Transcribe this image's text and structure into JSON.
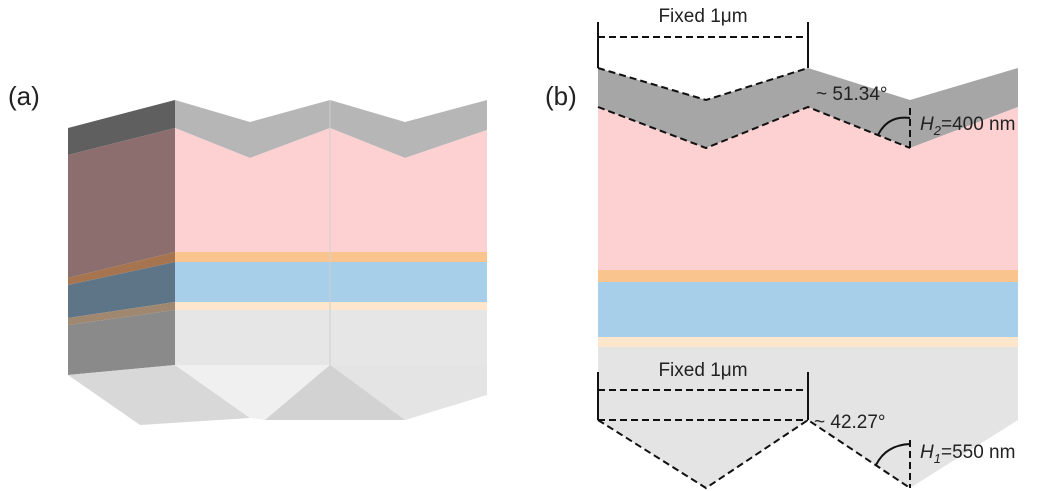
{
  "panel_a": {
    "label": "(a)"
  },
  "panel_b": {
    "label": "(b)",
    "top_period": "Fixed 1μm",
    "top_angle": "~ 51.34°",
    "top_height": {
      "symbol": "H",
      "subscript": "2",
      "value": "=400 nm"
    },
    "bottom_period": "Fixed 1μm",
    "bottom_angle": "~ 42.27°",
    "bottom_height": {
      "symbol": "H",
      "subscript": "1",
      "value": "=550 nm"
    }
  }
}
